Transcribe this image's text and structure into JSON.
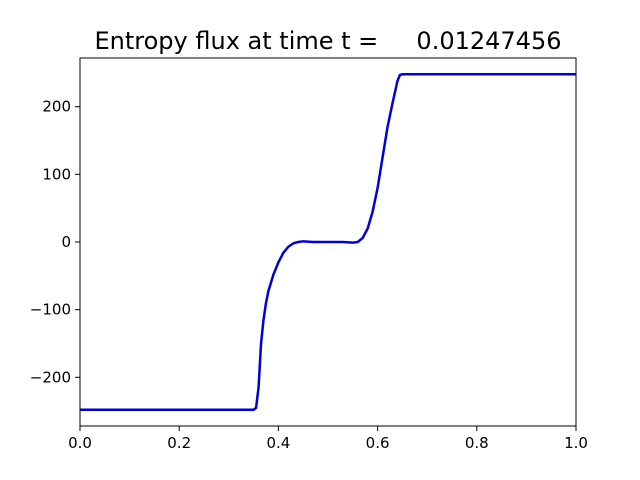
{
  "chart_data": {
    "type": "line",
    "title": "Entropy flux at time t =     0.01247456",
    "xlabel": "",
    "ylabel": "",
    "xlim": [
      0.0,
      1.0
    ],
    "ylim": [
      -272,
      272
    ],
    "x_ticks": [
      {
        "value": 0.0,
        "label": "0.0"
      },
      {
        "value": 0.2,
        "label": "0.2"
      },
      {
        "value": 0.4,
        "label": "0.4"
      },
      {
        "value": 0.6,
        "label": "0.6"
      },
      {
        "value": 0.8,
        "label": "0.8"
      },
      {
        "value": 1.0,
        "label": "1.0"
      }
    ],
    "y_ticks": [
      {
        "value": -200,
        "label": "−200"
      },
      {
        "value": -100,
        "label": "−100"
      },
      {
        "value": 0,
        "label": "0"
      },
      {
        "value": 100,
        "label": "100"
      },
      {
        "value": 200,
        "label": "200"
      }
    ],
    "grid": false,
    "series": [
      {
        "color": "#0000dd",
        "x": [
          0.0,
          0.35,
          0.355,
          0.36,
          0.365,
          0.37,
          0.375,
          0.38,
          0.39,
          0.4,
          0.41,
          0.42,
          0.43,
          0.44,
          0.45,
          0.47,
          0.5,
          0.53,
          0.55,
          0.56,
          0.57,
          0.58,
          0.59,
          0.6,
          0.61,
          0.62,
          0.63,
          0.64,
          0.645,
          0.65,
          0.66,
          0.7,
          0.8,
          0.9,
          1.0
        ],
        "y": [
          -248,
          -248,
          -245,
          -215,
          -150,
          -115,
          -90,
          -72,
          -48,
          -30,
          -16,
          -7,
          -2,
          0,
          1,
          0,
          0,
          0,
          -1,
          0,
          6,
          20,
          45,
          80,
          125,
          170,
          205,
          238,
          247,
          248,
          248,
          248,
          248,
          248,
          248
        ]
      }
    ]
  }
}
